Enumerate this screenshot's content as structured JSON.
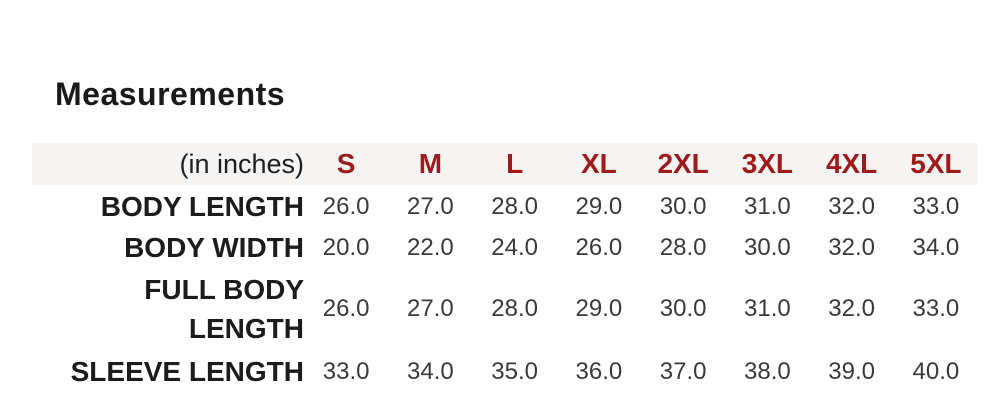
{
  "title": "Measurements",
  "table": {
    "unit_label": "(in inches)",
    "sizes": [
      "S",
      "M",
      "L",
      "XL",
      "2XL",
      "3XL",
      "4XL",
      "5XL"
    ],
    "rows": [
      {
        "label": "BODY LENGTH",
        "values": [
          "26.0",
          "27.0",
          "28.0",
          "29.0",
          "30.0",
          "31.0",
          "32.0",
          "33.0"
        ]
      },
      {
        "label": "BODY WIDTH",
        "values": [
          "20.0",
          "22.0",
          "24.0",
          "26.0",
          "28.0",
          "30.0",
          "32.0",
          "34.0"
        ]
      },
      {
        "label": "FULL BODY LENGTH",
        "values": [
          "26.0",
          "27.0",
          "28.0",
          "29.0",
          "30.0",
          "31.0",
          "32.0",
          "33.0"
        ]
      },
      {
        "label": "SLEEVE LENGTH",
        "values": [
          "33.0",
          "34.0",
          "35.0",
          "36.0",
          "37.0",
          "38.0",
          "39.0",
          "40.0"
        ]
      }
    ]
  },
  "colors": {
    "size_header_text": "#9e1b1b",
    "header_row_bg": "#f5f4f3",
    "row_label_text": "#1c1c1c",
    "value_text": "#3a3a3a",
    "title_text": "#1a1a1a"
  }
}
